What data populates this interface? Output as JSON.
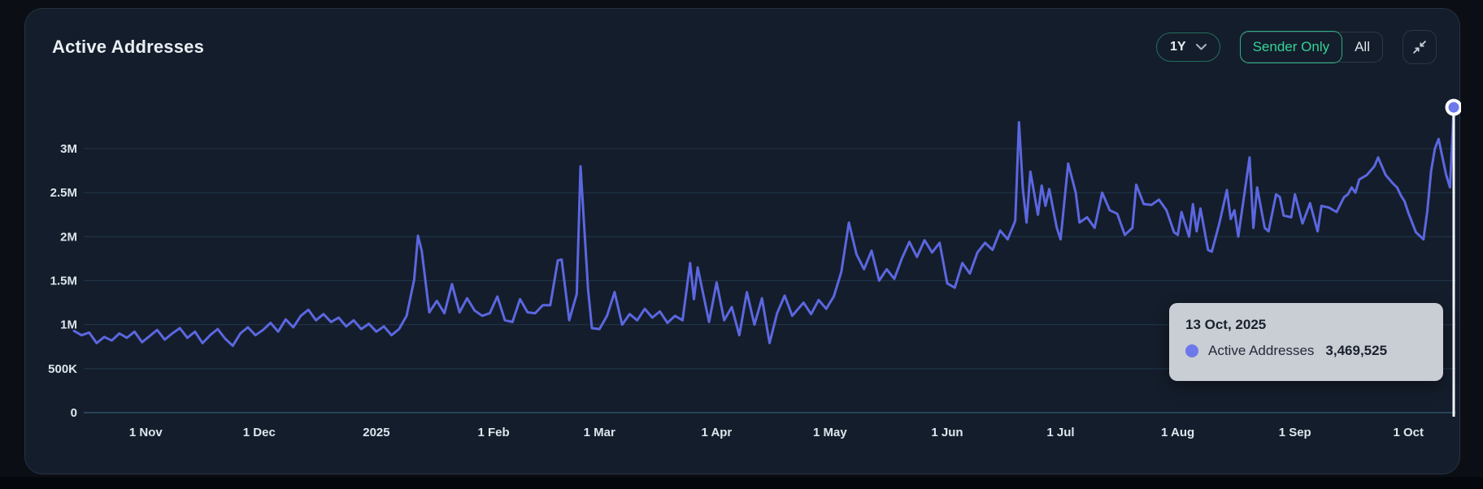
{
  "header": {
    "title": "Active Addresses"
  },
  "controls": {
    "range": {
      "selected": "1Y"
    },
    "mode_toggle": {
      "options": [
        "Sender Only",
        "All"
      ],
      "selected": "Sender Only"
    }
  },
  "colors": {
    "accent_green": "#34d399",
    "line": "#5b67e0",
    "marker_fill": "#6d78ea",
    "marker_ring": "#ffffff",
    "grid": "#20344a",
    "grid_zero": "#2f5069",
    "axis_text": "#dde5ed",
    "crosshair": "#f2f5f8",
    "tooltip_bg": "#c9cdd4",
    "tooltip_text": "#1a222e"
  },
  "chart_data": {
    "type": "line",
    "title": "Active Addresses",
    "series_name": "Active Addresses",
    "legend_position": "none",
    "grid": "horizontal",
    "x_axis": {
      "unit": "days from start of 1Y window (window ends 13 Oct, 2025)",
      "range_days": [
        0,
        365
      ],
      "ticks": [
        {
          "label": "1 Nov",
          "day": 19
        },
        {
          "label": "1 Dec",
          "day": 49
        },
        {
          "label": "2025",
          "day": 80
        },
        {
          "label": "1 Feb",
          "day": 111
        },
        {
          "label": "1 Mar",
          "day": 139
        },
        {
          "label": "1 Apr",
          "day": 170
        },
        {
          "label": "1 May",
          "day": 200
        },
        {
          "label": "1 Jun",
          "day": 231
        },
        {
          "label": "1 Jul",
          "day": 261
        },
        {
          "label": "1 Aug",
          "day": 292
        },
        {
          "label": "1 Sep",
          "day": 323
        },
        {
          "label": "1 Oct",
          "day": 353
        }
      ]
    },
    "y_axis": {
      "unit": "active addresses",
      "range": [
        0,
        3600000
      ],
      "ticks": [
        {
          "label": "3M",
          "value": 3.0
        },
        {
          "label": "2.5M",
          "value": 2.5
        },
        {
          "label": "2M",
          "value": 2.0
        },
        {
          "label": "1.5M",
          "value": 1.5
        },
        {
          "label": "1M",
          "value": 1.0
        },
        {
          "label": "500K",
          "value": 0.5
        },
        {
          "label": "0",
          "value": 0.0
        }
      ]
    },
    "points_unit": "millions of addresses, [day, value]",
    "points": [
      [
        0,
        0.93
      ],
      [
        2,
        0.88
      ],
      [
        4,
        0.91
      ],
      [
        6,
        0.79
      ],
      [
        8,
        0.86
      ],
      [
        10,
        0.82
      ],
      [
        12,
        0.9
      ],
      [
        14,
        0.85
      ],
      [
        16,
        0.92
      ],
      [
        18,
        0.8
      ],
      [
        20,
        0.87
      ],
      [
        22,
        0.94
      ],
      [
        24,
        0.83
      ],
      [
        26,
        0.9
      ],
      [
        28,
        0.96
      ],
      [
        30,
        0.85
      ],
      [
        32,
        0.92
      ],
      [
        34,
        0.79
      ],
      [
        36,
        0.88
      ],
      [
        38,
        0.95
      ],
      [
        40,
        0.84
      ],
      [
        42,
        0.76
      ],
      [
        44,
        0.9
      ],
      [
        46,
        0.97
      ],
      [
        48,
        0.88
      ],
      [
        50,
        0.94
      ],
      [
        52,
        1.02
      ],
      [
        54,
        0.92
      ],
      [
        56,
        1.06
      ],
      [
        58,
        0.97
      ],
      [
        60,
        1.1
      ],
      [
        62,
        1.17
      ],
      [
        64,
        1.05
      ],
      [
        66,
        1.12
      ],
      [
        68,
        1.03
      ],
      [
        70,
        1.08
      ],
      [
        72,
        0.98
      ],
      [
        74,
        1.05
      ],
      [
        76,
        0.95
      ],
      [
        78,
        1.01
      ],
      [
        80,
        0.92
      ],
      [
        82,
        0.98
      ],
      [
        84,
        0.88
      ],
      [
        86,
        0.95
      ],
      [
        88,
        1.1
      ],
      [
        90,
        1.51
      ],
      [
        91,
        2.01
      ],
      [
        92,
        1.84
      ],
      [
        94,
        1.14
      ],
      [
        96,
        1.27
      ],
      [
        98,
        1.13
      ],
      [
        100,
        1.46
      ],
      [
        102,
        1.14
      ],
      [
        104,
        1.3
      ],
      [
        106,
        1.16
      ],
      [
        108,
        1.1
      ],
      [
        110,
        1.13
      ],
      [
        112,
        1.32
      ],
      [
        114,
        1.05
      ],
      [
        116,
        1.03
      ],
      [
        118,
        1.29
      ],
      [
        120,
        1.14
      ],
      [
        122,
        1.13
      ],
      [
        124,
        1.22
      ],
      [
        126,
        1.22
      ],
      [
        128,
        1.73
      ],
      [
        129,
        1.74
      ],
      [
        131,
        1.05
      ],
      [
        133,
        1.35
      ],
      [
        134,
        2.8
      ],
      [
        136,
        1.4
      ],
      [
        137,
        0.96
      ],
      [
        139,
        0.95
      ],
      [
        141,
        1.1
      ],
      [
        143,
        1.37
      ],
      [
        145,
        1.0
      ],
      [
        147,
        1.12
      ],
      [
        149,
        1.05
      ],
      [
        151,
        1.18
      ],
      [
        153,
        1.08
      ],
      [
        155,
        1.15
      ],
      [
        157,
        1.02
      ],
      [
        159,
        1.1
      ],
      [
        161,
        1.05
      ],
      [
        163,
        1.7
      ],
      [
        164,
        1.29
      ],
      [
        165,
        1.65
      ],
      [
        168,
        1.03
      ],
      [
        170,
        1.48
      ],
      [
        172,
        1.05
      ],
      [
        174,
        1.2
      ],
      [
        176,
        0.88
      ],
      [
        178,
        1.37
      ],
      [
        180,
        1.0
      ],
      [
        182,
        1.3
      ],
      [
        184,
        0.79
      ],
      [
        186,
        1.13
      ],
      [
        188,
        1.33
      ],
      [
        190,
        1.1
      ],
      [
        193,
        1.25
      ],
      [
        195,
        1.12
      ],
      [
        197,
        1.28
      ],
      [
        199,
        1.18
      ],
      [
        201,
        1.32
      ],
      [
        203,
        1.6
      ],
      [
        205,
        2.16
      ],
      [
        207,
        1.8
      ],
      [
        209,
        1.63
      ],
      [
        211,
        1.84
      ],
      [
        213,
        1.5
      ],
      [
        215,
        1.63
      ],
      [
        217,
        1.52
      ],
      [
        219,
        1.75
      ],
      [
        221,
        1.94
      ],
      [
        223,
        1.77
      ],
      [
        225,
        1.96
      ],
      [
        227,
        1.82
      ],
      [
        229,
        1.93
      ],
      [
        231,
        1.47
      ],
      [
        233,
        1.42
      ],
      [
        235,
        1.7
      ],
      [
        237,
        1.58
      ],
      [
        239,
        1.82
      ],
      [
        241,
        1.93
      ],
      [
        243,
        1.85
      ],
      [
        245,
        2.07
      ],
      [
        247,
        1.97
      ],
      [
        249,
        2.18
      ],
      [
        250,
        3.3
      ],
      [
        251,
        2.55
      ],
      [
        252,
        2.16
      ],
      [
        253,
        2.74
      ],
      [
        255,
        2.25
      ],
      [
        256,
        2.58
      ],
      [
        257,
        2.35
      ],
      [
        258,
        2.54
      ],
      [
        260,
        2.1
      ],
      [
        261,
        1.97
      ],
      [
        262,
        2.4
      ],
      [
        263,
        2.83
      ],
      [
        265,
        2.5
      ],
      [
        266,
        2.16
      ],
      [
        268,
        2.22
      ],
      [
        270,
        2.1
      ],
      [
        272,
        2.5
      ],
      [
        274,
        2.3
      ],
      [
        276,
        2.26
      ],
      [
        278,
        2.02
      ],
      [
        280,
        2.1
      ],
      [
        281,
        2.59
      ],
      [
        283,
        2.37
      ],
      [
        285,
        2.36
      ],
      [
        287,
        2.42
      ],
      [
        289,
        2.3
      ],
      [
        291,
        2.05
      ],
      [
        292,
        2.02
      ],
      [
        293,
        2.28
      ],
      [
        295,
        2.0
      ],
      [
        296,
        2.37
      ],
      [
        297,
        2.06
      ],
      [
        298,
        2.32
      ],
      [
        300,
        1.85
      ],
      [
        301,
        1.83
      ],
      [
        303,
        2.15
      ],
      [
        305,
        2.53
      ],
      [
        306,
        2.2
      ],
      [
        307,
        2.3
      ],
      [
        308,
        2.0
      ],
      [
        311,
        2.9
      ],
      [
        312,
        2.1
      ],
      [
        313,
        2.56
      ],
      [
        315,
        2.1
      ],
      [
        316,
        2.06
      ],
      [
        318,
        2.48
      ],
      [
        319,
        2.45
      ],
      [
        320,
        2.24
      ],
      [
        322,
        2.22
      ],
      [
        323,
        2.48
      ],
      [
        325,
        2.15
      ],
      [
        327,
        2.38
      ],
      [
        329,
        2.06
      ],
      [
        330,
        2.35
      ],
      [
        332,
        2.33
      ],
      [
        334,
        2.28
      ],
      [
        336,
        2.45
      ],
      [
        337,
        2.48
      ],
      [
        338,
        2.56
      ],
      [
        339,
        2.5
      ],
      [
        340,
        2.65
      ],
      [
        342,
        2.7
      ],
      [
        344,
        2.8
      ],
      [
        345,
        2.9
      ],
      [
        347,
        2.7
      ],
      [
        349,
        2.6
      ],
      [
        350,
        2.56
      ],
      [
        351,
        2.47
      ],
      [
        352,
        2.4
      ],
      [
        353,
        2.27
      ],
      [
        355,
        2.05
      ],
      [
        357,
        1.97
      ],
      [
        358,
        2.29
      ],
      [
        359,
        2.74
      ],
      [
        360,
        3.0
      ],
      [
        361,
        3.11
      ],
      [
        363,
        2.7
      ],
      [
        364,
        2.56
      ],
      [
        365,
        3.4695
      ]
    ],
    "highlight": {
      "day": 365,
      "value": 3469525,
      "tooltip": {
        "date": "13 Oct, 2025",
        "label": "Active Addresses",
        "value": "3,469,525"
      }
    }
  }
}
